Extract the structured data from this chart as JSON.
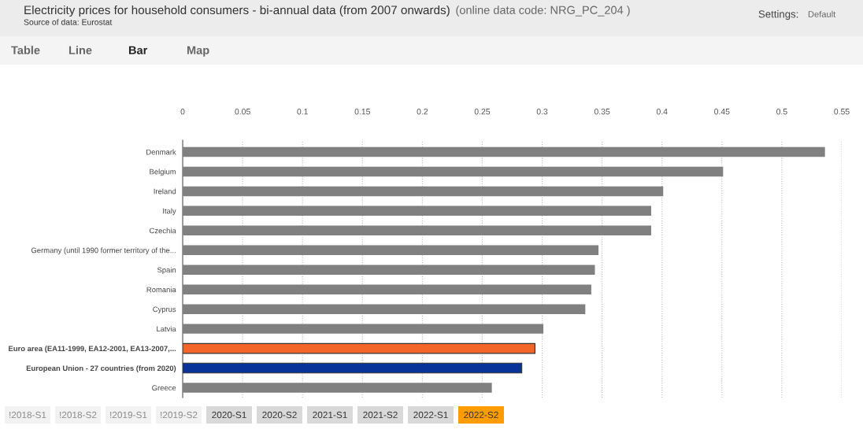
{
  "chart_data": {
    "type": "bar",
    "orientation": "horizontal",
    "title": "Electricity prices for household consumers - bi-annual data (from 2007 onwards)",
    "subtitle": "(online data code: NRG_PC_204 )",
    "annotations": [
      "Source of data: Eurostat",
      "Table",
      "Line",
      "Bar",
      "Map",
      "Settings:",
      "Default",
      "!2018-S1",
      "!2018-S2",
      "!2019-S1",
      "!2019-S2",
      "2020-S1",
      "2020-S2",
      "2021-S1",
      "2021-S2",
      "2022-S1",
      "2022-S2"
    ],
    "categories": [
      "Denmark",
      "Belgium",
      "Ireland",
      "Italy",
      "Czechia",
      "Germany (until 1990 former territory of the...",
      "Spain",
      "Romania",
      "Cyprus",
      "Latvia",
      "Euro area (EA11-1999, EA12-2001, EA13-2007,...",
      "European Union - 27 countries (from 2020)",
      "Greece"
    ],
    "values": [
      0.536,
      0.451,
      0.401,
      0.391,
      0.391,
      0.347,
      0.344,
      0.341,
      0.336,
      0.301,
      0.294,
      0.283,
      0.258
    ],
    "colors": [
      "#808080",
      "#808080",
      "#808080",
      "#808080",
      "#808080",
      "#808080",
      "#808080",
      "#808080",
      "#808080",
      "#808080",
      "#f4652a",
      "#0a339a",
      "#808080"
    ],
    "xlim": [
      0,
      0.55
    ],
    "xticks": [
      0,
      0.05,
      0.1,
      0.15,
      0.2,
      0.25,
      0.3,
      0.35,
      0.4,
      0.45,
      0.5,
      0.55
    ],
    "grid": "x",
    "legend": false
  }
}
